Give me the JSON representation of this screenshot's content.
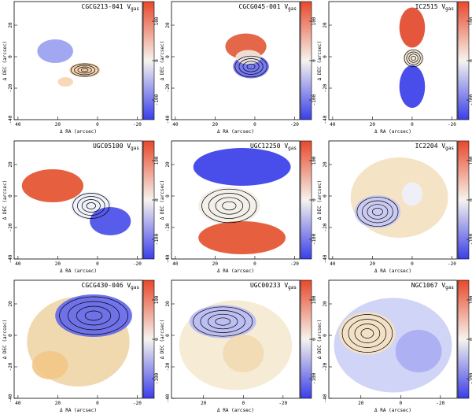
{
  "figure": {
    "description_free": true
  },
  "chart_data": [
    {
      "type": "heatmap",
      "title": "CGCG213-041 V",
      "title_sub": "gas",
      "xlabel": "Δ RA (arcsec)",
      "ylabel": "Δ DEC (arcsec)",
      "xticks": [
        "40",
        "20",
        "0",
        "-20"
      ],
      "yticks": [
        "20",
        "0",
        "-20",
        "-40"
      ],
      "colorbar_ticks": [
        "100",
        "0",
        "-100"
      ],
      "colorbar_range": [
        -150,
        150
      ],
      "ylim": [
        -40,
        35
      ]
    },
    {
      "type": "heatmap",
      "title": "CGCG045-001 V",
      "title_sub": "gas",
      "xlabel": "Δ RA (arcsec)",
      "ylabel": "Δ DEC (arcsec)",
      "xticks": [
        "40",
        "20",
        "0",
        "-20"
      ],
      "yticks": [
        "20",
        "0",
        "-20",
        "-40"
      ],
      "colorbar_ticks": [
        "100",
        "0",
        "-100"
      ],
      "colorbar_range": [
        -150,
        150
      ],
      "ylim": [
        -40,
        35
      ]
    },
    {
      "type": "heatmap",
      "title": "IC2515 V",
      "title_sub": "gas",
      "xlabel": "Δ RA (arcsec)",
      "ylabel": "Δ DEC (arcsec)",
      "xticks": [
        "40",
        "20",
        "0",
        "-20"
      ],
      "yticks": [
        "20",
        "0",
        "-20",
        "-40"
      ],
      "colorbar_ticks": [
        "100",
        "0",
        "-100"
      ],
      "colorbar_range": [
        -150,
        150
      ],
      "ylim": [
        -40,
        35
      ]
    },
    {
      "type": "heatmap",
      "title": "UGC05100 V",
      "title_sub": "gas",
      "xlabel": "Δ RA (arcsec)",
      "ylabel": "Δ DEC (arcsec)",
      "xticks": [
        "40",
        "20",
        "0",
        "-20"
      ],
      "yticks": [
        "20",
        "0",
        "-20",
        "-40"
      ],
      "colorbar_ticks": [
        "100",
        "0",
        "-100"
      ],
      "colorbar_range": [
        -150,
        150
      ],
      "ylim": [
        -40,
        35
      ]
    },
    {
      "type": "heatmap",
      "title": "UGC12250 V",
      "title_sub": "gas",
      "xlabel": "Δ RA (arcsec)",
      "ylabel": "Δ DEC (arcsec)",
      "xticks": [
        "40",
        "20",
        "0",
        "-20"
      ],
      "yticks": [
        "20",
        "0",
        "-20",
        "-40"
      ],
      "colorbar_ticks": [
        "100",
        "0",
        "-100"
      ],
      "colorbar_range": [
        -150,
        150
      ],
      "ylim": [
        -40,
        35
      ]
    },
    {
      "type": "heatmap",
      "title": "IC2204 V",
      "title_sub": "gas",
      "xlabel": "Δ RA (arcsec)",
      "ylabel": "Δ DEC (arcsec)",
      "xticks": [
        "40",
        "20",
        "0",
        "-20"
      ],
      "yticks": [
        "20",
        "0",
        "-20",
        "-40"
      ],
      "colorbar_ticks": [
        "100",
        "0",
        "-100"
      ],
      "colorbar_range": [
        -150,
        150
      ],
      "ylim": [
        -40,
        35
      ]
    },
    {
      "type": "heatmap",
      "title": "CGCG430-046 V",
      "title_sub": "gas",
      "xlabel": "Δ RA (arcsec)",
      "ylabel": "Δ DEC (arcsec)",
      "xticks": [
        "40",
        "20",
        "0",
        "-20"
      ],
      "yticks": [
        "20",
        "0",
        "-20",
        "-40"
      ],
      "colorbar_ticks": [
        "100",
        "0",
        "-100"
      ],
      "colorbar_range": [
        -150,
        150
      ],
      "ylim": [
        -40,
        35
      ]
    },
    {
      "type": "heatmap",
      "title": "UGC00233 V",
      "title_sub": "gas",
      "xlabel": "Δ RA (arcsec)",
      "ylabel": "Δ DEC (arcsec)",
      "xticks": [
        "20",
        "0",
        "-20"
      ],
      "yticks": [
        "20",
        "0",
        "-20",
        "-40"
      ],
      "colorbar_ticks": [
        "100",
        "0",
        "-100"
      ],
      "colorbar_range": [
        -150,
        150
      ],
      "ylim": [
        -40,
        35
      ]
    },
    {
      "type": "heatmap",
      "title": "NGC1067 V",
      "title_sub": "gas",
      "xlabel": "Δ RA (arcsec)",
      "ylabel": "Δ DEC (arcsec)",
      "xticks": [
        "20",
        "0",
        "-20"
      ],
      "yticks": [
        "20",
        "0",
        "-20",
        "-40"
      ],
      "colorbar_ticks": [
        "100",
        "0",
        "-100"
      ],
      "colorbar_range": [
        -150,
        150
      ],
      "ylim": [
        -40,
        35
      ]
    }
  ],
  "colors": {
    "red": "#e8482c",
    "blue": "#3a3ee8",
    "mid": "#f6f4ee"
  }
}
